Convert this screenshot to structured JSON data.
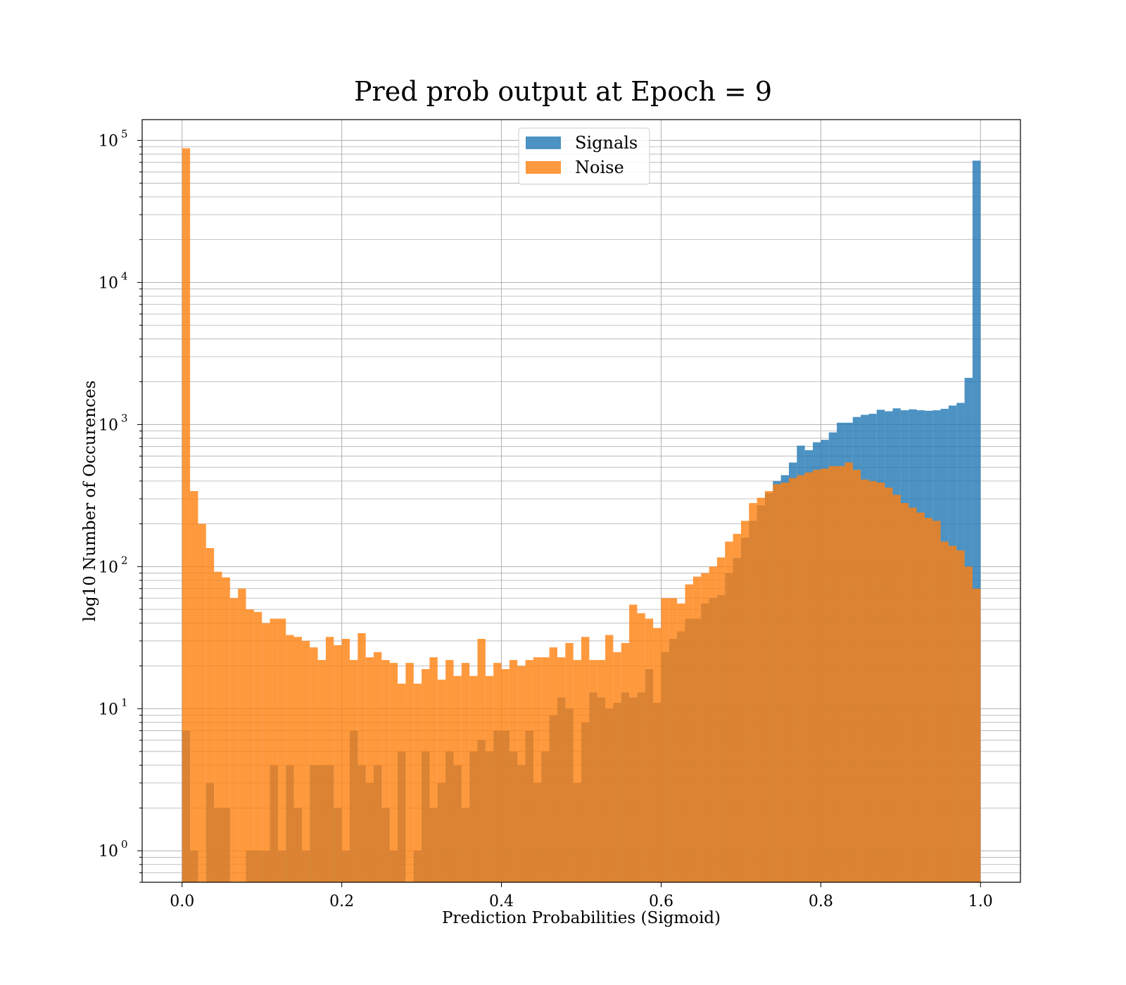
{
  "chart_data": {
    "type": "bar",
    "subtype": "overlaid-histogram",
    "title": "Pred prob output at Epoch = 9",
    "xlabel": "Prediction Probabilities (Sigmoid)",
    "ylabel": "log10 Number of Occurences",
    "xlim": [
      -0.05,
      1.05
    ],
    "ylim": [
      0.6,
      140000
    ],
    "yscale": "log",
    "grid": true,
    "legend_position": "top-center",
    "bin_edges_start": 0.0,
    "bin_width": 0.01,
    "x_ticks": [
      0.0,
      0.2,
      0.4,
      0.6,
      0.8,
      1.0
    ],
    "x_tick_labels": [
      "0.0",
      "0.2",
      "0.4",
      "0.6",
      "0.8",
      "1.0"
    ],
    "y_ticks": [
      1,
      10,
      100,
      1000,
      10000,
      100000
    ],
    "y_tick_labels": [
      {
        "base": "10",
        "exp": "0"
      },
      {
        "base": "10",
        "exp": "1"
      },
      {
        "base": "10",
        "exp": "2"
      },
      {
        "base": "10",
        "exp": "3"
      },
      {
        "base": "10",
        "exp": "4"
      },
      {
        "base": "10",
        "exp": "5"
      }
    ],
    "series": [
      {
        "name": "Signals",
        "color": "#1f77b4",
        "values": [
          7,
          1,
          0,
          3,
          2,
          2,
          0,
          0,
          1,
          1,
          1,
          4,
          1,
          4,
          2,
          1,
          4,
          4,
          4,
          2,
          1,
          7,
          4,
          3,
          4,
          2,
          1,
          5,
          0,
          1,
          5,
          2,
          3,
          5,
          4,
          2,
          5,
          6,
          5,
          7,
          7,
          5,
          4,
          7,
          3,
          5,
          9,
          12,
          10,
          3,
          8,
          13,
          12,
          10,
          11,
          13,
          12,
          13,
          19,
          11,
          25,
          31,
          35,
          43,
          43,
          55,
          60,
          63,
          90,
          115,
          160,
          210,
          270,
          330,
          400,
          440,
          540,
          710,
          660,
          750,
          780,
          880,
          1030,
          1030,
          1130,
          1170,
          1190,
          1270,
          1240,
          1300,
          1260,
          1280,
          1260,
          1250,
          1260,
          1290,
          1360,
          1420,
          2130,
          72000
        ]
      },
      {
        "name": "Noise",
        "color": "#ff7f0e",
        "values": [
          88000,
          340,
          200,
          135,
          92,
          84,
          60,
          70,
          50,
          48,
          40,
          43,
          43,
          33,
          32,
          30,
          27,
          22,
          32,
          28,
          31,
          22,
          34,
          23,
          25,
          22,
          21,
          15,
          21,
          15,
          19,
          23,
          16,
          22,
          17,
          21,
          17,
          31,
          17,
          21,
          19,
          22,
          20,
          22,
          23,
          23,
          27,
          23,
          29,
          22,
          32,
          22,
          22,
          33,
          25,
          29,
          54,
          47,
          43,
          37,
          60,
          60,
          55,
          75,
          85,
          90,
          100,
          116,
          150,
          170,
          210,
          280,
          305,
          340,
          380,
          390,
          420,
          440,
          460,
          480,
          490,
          510,
          510,
          540,
          480,
          410,
          400,
          390,
          360,
          320,
          280,
          260,
          240,
          220,
          210,
          150,
          140,
          130,
          100,
          70
        ]
      }
    ]
  }
}
